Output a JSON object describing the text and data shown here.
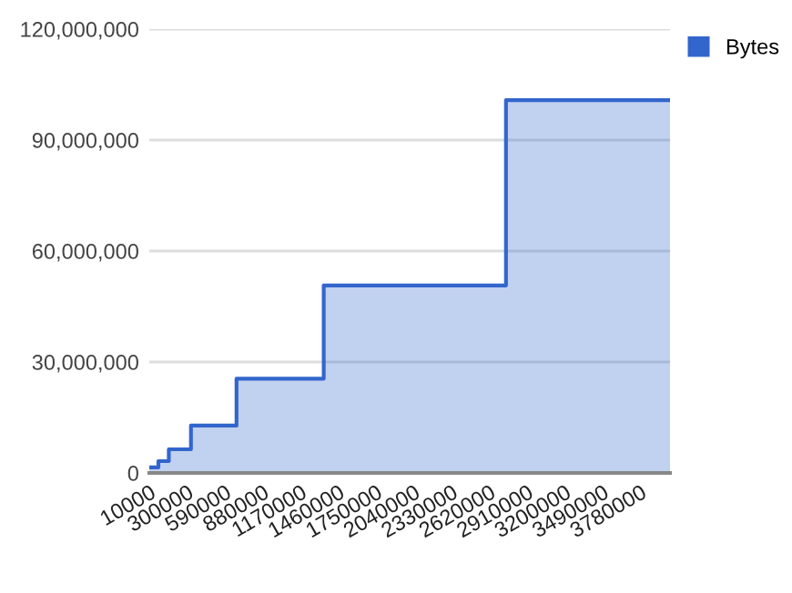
{
  "chart_data": {
    "type": "area",
    "x": [
      10000,
      80000,
      80000,
      160000,
      160000,
      330000,
      330000,
      680000,
      680000,
      1350000,
      1350000,
      2750000,
      2750000,
      4010000
    ],
    "series": [
      {
        "name": "Bytes",
        "color": "#3366cc",
        "values": [
          1500000,
          1500000,
          3200000,
          3200000,
          6400000,
          6400000,
          12800000,
          12800000,
          25500000,
          25500000,
          50700000,
          50700000,
          100800000,
          100800000
        ]
      }
    ],
    "xlim": [
      10000,
      4010000
    ],
    "xticks": [
      10000,
      300000,
      590000,
      880000,
      1170000,
      1460000,
      1750000,
      2040000,
      2330000,
      2620000,
      2910000,
      3200000,
      3490000,
      3780000
    ],
    "ylim": [
      0,
      120000000
    ],
    "yticks": [
      {
        "value": 0,
        "label": "0"
      },
      {
        "value": 30000000,
        "label": "30,000,000"
      },
      {
        "value": 60000000,
        "label": "60,000,000"
      },
      {
        "value": 90000000,
        "label": "90,000,000"
      },
      {
        "value": 120000000,
        "label": "120,000,000"
      }
    ],
    "grid": "y",
    "legend": "top right",
    "marker": "none",
    "line_style": "solid"
  }
}
